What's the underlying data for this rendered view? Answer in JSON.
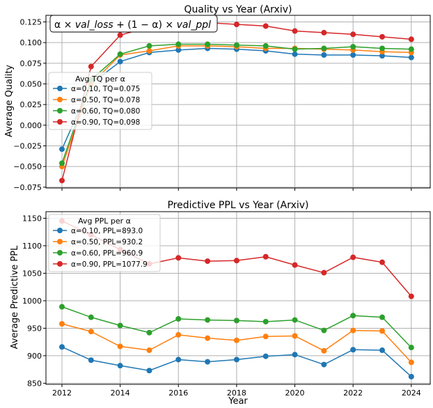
{
  "chart_data": [
    {
      "type": "line",
      "title": "Quality vs Year (Arxiv)",
      "xlabel": "",
      "ylabel": "Average Quality",
      "annotation": "α × val_loss + (1 − α) × val_ppl",
      "annotation_parts": [
        "α × ",
        "val_loss",
        " + (1 − α) × ",
        "val_ppl"
      ],
      "x": [
        2012,
        2013,
        2014,
        2015,
        2016,
        2017,
        2018,
        2019,
        2020,
        2021,
        2022,
        2023,
        2024
      ],
      "xlim": [
        2011.45,
        2024.65
      ],
      "ylim": [
        -0.076,
        0.133
      ],
      "yticks": [
        -0.075,
        -0.05,
        -0.025,
        0.0,
        0.025,
        0.05,
        0.075,
        0.1,
        0.125
      ],
      "ytick_labels": [
        "−0.075",
        "−0.050",
        "−0.025",
        "0.000",
        "0.025",
        "0.050",
        "0.075",
        "0.100",
        "0.125"
      ],
      "grid": true,
      "legend_title": "Avg TQ per α",
      "legend_position": "center-left",
      "series": [
        {
          "name": "α=0.10, TQ=0.075",
          "color": "#1f77b4",
          "values": [
            -0.029,
            0.05,
            0.077,
            0.088,
            0.091,
            0.093,
            0.092,
            0.09,
            0.086,
            0.085,
            0.085,
            0.084,
            0.082
          ]
        },
        {
          "name": "α=0.50, TQ=0.078",
          "color": "#ff7f0e",
          "values": [
            -0.05,
            0.05,
            0.085,
            0.09,
            0.096,
            0.096,
            0.095,
            0.093,
            0.093,
            0.092,
            0.091,
            0.089,
            0.088
          ]
        },
        {
          "name": "α=0.60, TQ=0.080",
          "color": "#2ca02c",
          "values": [
            -0.046,
            0.055,
            0.086,
            0.096,
            0.098,
            0.098,
            0.097,
            0.096,
            0.092,
            0.093,
            0.095,
            0.093,
            0.092
          ]
        },
        {
          "name": "α=0.90, TQ=0.098",
          "color": "#d62728",
          "values": [
            -0.067,
            0.071,
            0.109,
            0.119,
            0.123,
            0.124,
            0.122,
            0.12,
            0.114,
            0.112,
            0.11,
            0.107,
            0.104
          ]
        }
      ]
    },
    {
      "type": "line",
      "title": "Predictive PPL vs Year (Arxiv)",
      "xlabel": "Year",
      "ylabel": "Average Predictive PPL",
      "x": [
        2012,
        2013,
        2014,
        2015,
        2016,
        2017,
        2018,
        2019,
        2020,
        2021,
        2022,
        2023,
        2024
      ],
      "xticks": [
        2012,
        2014,
        2016,
        2018,
        2020,
        2022,
        2024
      ],
      "xlim": [
        2011.45,
        2024.65
      ],
      "ylim": [
        848,
        1162
      ],
      "yticks": [
        850,
        900,
        950,
        1000,
        1050,
        1100,
        1150
      ],
      "grid": true,
      "legend_title": "Avg PPL per α",
      "legend_position": "upper-left",
      "series": [
        {
          "name": "α=0.10, PPL=893.0",
          "color": "#1f77b4",
          "values": [
            916,
            892,
            882,
            873,
            893,
            889,
            893,
            899,
            902,
            884,
            911,
            910,
            862
          ]
        },
        {
          "name": "α=0.50, PPL=930.2",
          "color": "#ff7f0e",
          "values": [
            958,
            944,
            917,
            910,
            938,
            932,
            928,
            935,
            936,
            909,
            946,
            945,
            888
          ]
        },
        {
          "name": "α=0.60, PPL=960.9",
          "color": "#2ca02c",
          "values": [
            989,
            970,
            955,
            942,
            967,
            965,
            964,
            962,
            965,
            946,
            973,
            970,
            915
          ]
        },
        {
          "name": "α=0.90, PPL=1077.9",
          "color": "#d62728",
          "values": [
            1145,
            1120,
            1093,
            1067,
            1078,
            1072,
            1073,
            1080,
            1065,
            1051,
            1079,
            1070,
            1008
          ]
        }
      ]
    }
  ]
}
